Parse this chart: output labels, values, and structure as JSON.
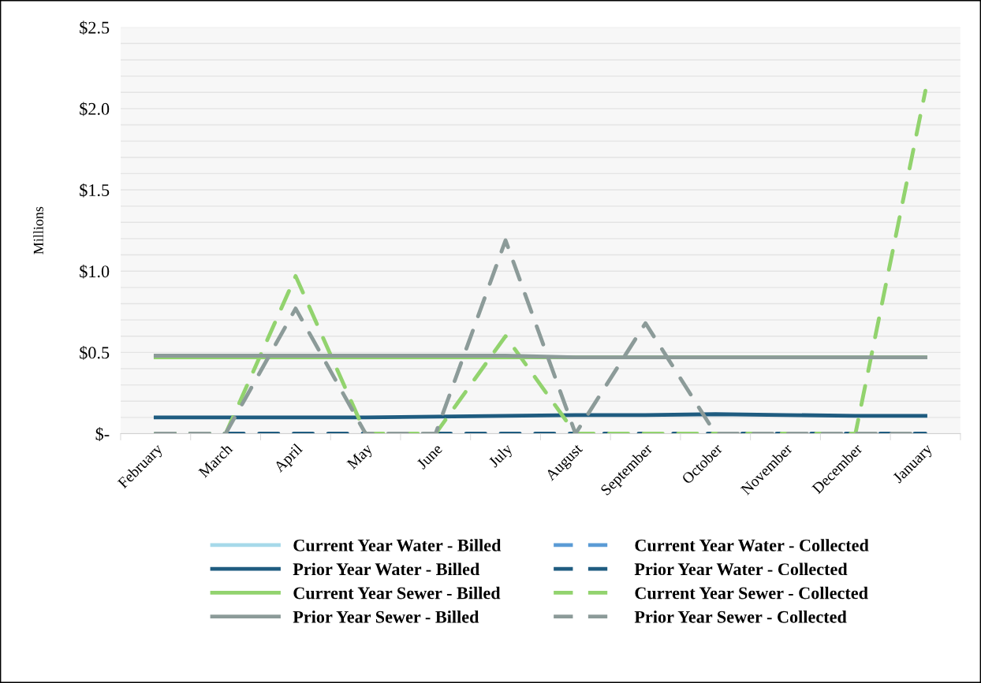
{
  "chart_data": {
    "type": "line",
    "ylabel": "Millions",
    "categories": [
      "February",
      "March",
      "April",
      "May",
      "June",
      "July",
      "August",
      "September",
      "October",
      "November",
      "December",
      "January"
    ],
    "series": [
      {
        "name": "Current Year Water - Billed",
        "color": "#a6d9ea",
        "line_style": "solid",
        "values": [
          null,
          null,
          null,
          null,
          null,
          null,
          null,
          null,
          null,
          null,
          null,
          null
        ]
      },
      {
        "name": "Current Year Water - Collected",
        "color": "#5b9bd5",
        "line_style": "dashed",
        "values": [
          null,
          null,
          null,
          null,
          null,
          null,
          null,
          null,
          null,
          null,
          null,
          null
        ]
      },
      {
        "name": "Prior Year Water - Billed",
        "color": "#1f5c80",
        "line_style": "solid",
        "values": [
          0.1,
          0.1,
          0.1,
          0.1,
          0.105,
          0.11,
          0.115,
          0.115,
          0.12,
          0.115,
          0.11,
          0.11
        ]
      },
      {
        "name": "Prior Year Water - Collected",
        "color": "#1f5c80",
        "line_style": "dashed",
        "values": [
          0,
          0,
          0,
          0,
          0,
          0,
          0,
          0,
          0,
          0,
          0,
          0
        ]
      },
      {
        "name": "Current Year Sewer - Billed",
        "color": "#92d36e",
        "line_style": "solid",
        "values": [
          0.47,
          0.47,
          0.47,
          0.47,
          0.47,
          0.47,
          0.47,
          0.47,
          0.47,
          0.47,
          0.47,
          0.47
        ]
      },
      {
        "name": "Current Year Sewer - Collected",
        "color": "#92d36e",
        "line_style": "dashed",
        "values": [
          0,
          0,
          0.97,
          0,
          0,
          0.6,
          0,
          0,
          0,
          0,
          0,
          2.11
        ]
      },
      {
        "name": "Prior Year Sewer - Billed",
        "color": "#8c9b99",
        "line_style": "solid",
        "values": [
          0.48,
          0.48,
          0.48,
          0.48,
          0.48,
          0.48,
          0.47,
          0.47,
          0.47,
          0.47,
          0.47,
          0.47
        ]
      },
      {
        "name": "Prior Year Sewer - Collected",
        "color": "#8c9b99",
        "line_style": "dashed",
        "values": [
          0,
          0,
          0.77,
          0,
          0,
          1.19,
          0,
          0.68,
          0,
          0,
          0,
          0
        ]
      }
    ],
    "ylim": [
      0,
      2.5
    ],
    "yticks": [
      {
        "value": 0,
        "label": "$-"
      },
      {
        "value": 0.1,
        "label": null
      },
      {
        "value": 0.2,
        "label": null
      },
      {
        "value": 0.3,
        "label": null
      },
      {
        "value": 0.4,
        "label": null
      },
      {
        "value": 0.5,
        "label": "$0.5"
      },
      {
        "value": 0.6,
        "label": null
      },
      {
        "value": 0.7,
        "label": null
      },
      {
        "value": 0.8,
        "label": null
      },
      {
        "value": 0.9,
        "label": null
      },
      {
        "value": 1.0,
        "label": "$1.0"
      },
      {
        "value": 1.1,
        "label": null
      },
      {
        "value": 1.2,
        "label": null
      },
      {
        "value": 1.3,
        "label": null
      },
      {
        "value": 1.4,
        "label": null
      },
      {
        "value": 1.5,
        "label": "$1.5"
      },
      {
        "value": 1.6,
        "label": null
      },
      {
        "value": 1.7,
        "label": null
      },
      {
        "value": 1.8,
        "label": null
      },
      {
        "value": 1.9,
        "label": null
      },
      {
        "value": 2.0,
        "label": "$2.0"
      },
      {
        "value": 2.1,
        "label": null
      },
      {
        "value": 2.2,
        "label": null
      },
      {
        "value": 2.3,
        "label": null
      },
      {
        "value": 2.4,
        "label": null
      },
      {
        "value": 2.5,
        "label": "$2.5"
      }
    ],
    "grid": "y",
    "legend": "bottom",
    "marker": "none"
  }
}
